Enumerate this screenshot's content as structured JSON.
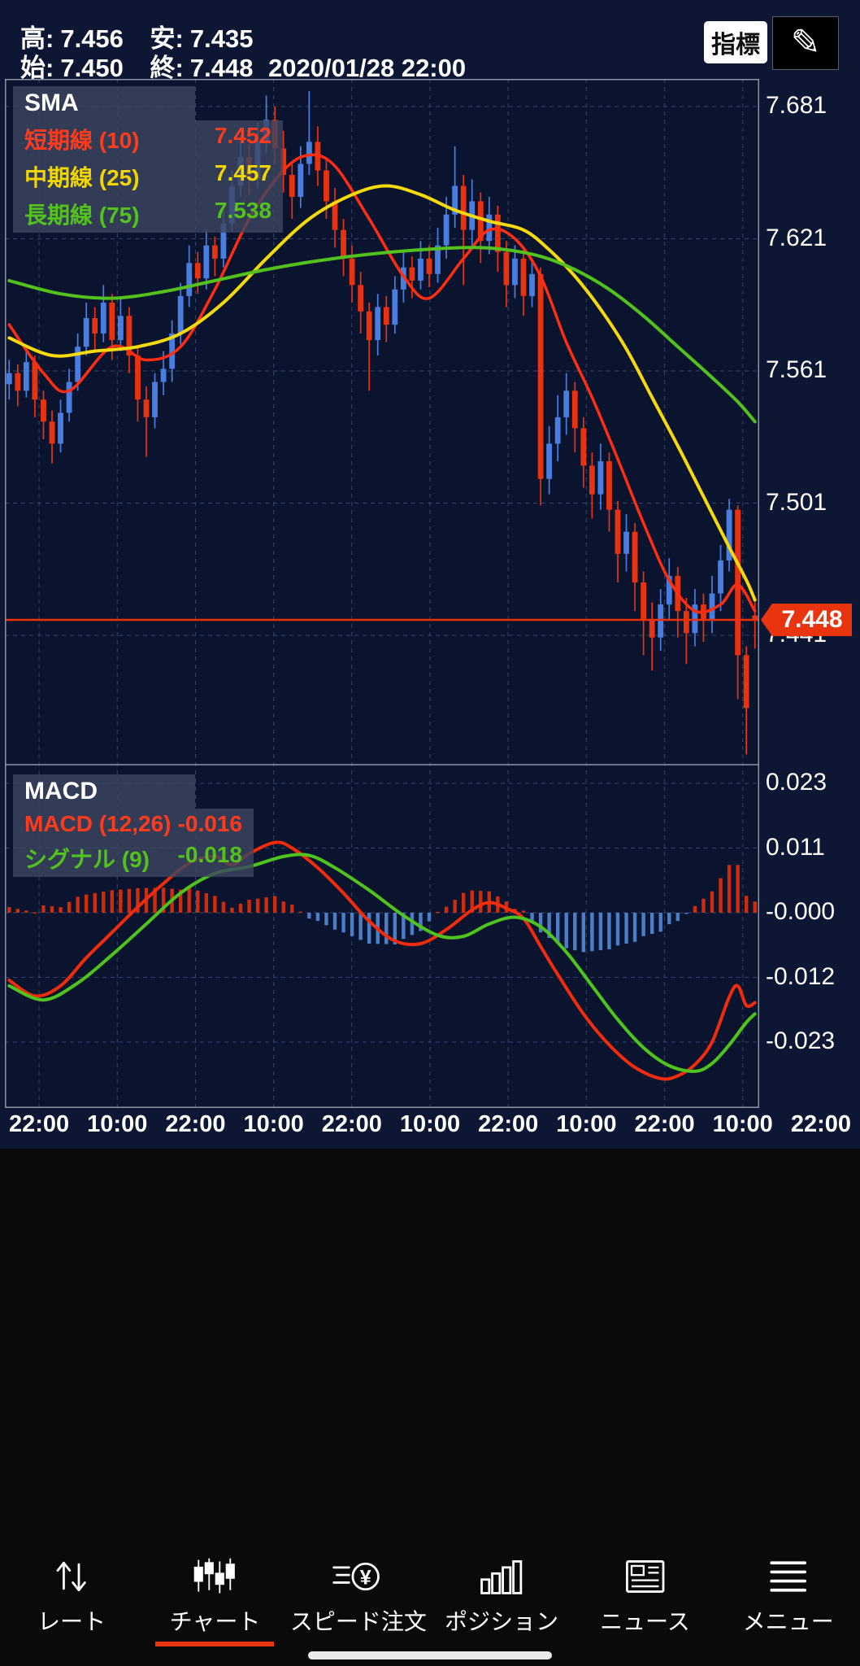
{
  "header": {
    "high_label": "高:",
    "high": "7.456",
    "low_label": "安:",
    "low": "7.435",
    "open_label": "始:",
    "open": "7.450",
    "close_label": "終:",
    "close": "7.448",
    "datetime": "2020/01/28 22:00",
    "indicator_button": "指標"
  },
  "icons": {
    "pencil": "✎"
  },
  "colors": {
    "page_bg": "#0d1734",
    "chart_bg": "#0a142e",
    "grid": "#35456b",
    "border": "#8b94a8",
    "candle_up": "#4a7de0",
    "candle_down": "#e93210",
    "price_line": "#ed3007",
    "accent": "#e8350f"
  },
  "x_labels": [
    "22:00",
    "10:00",
    "22:00",
    "10:00",
    "22:00",
    "10:00",
    "22:00",
    "10:00",
    "22:00",
    "10:00",
    "22:00"
  ],
  "chart_data": [
    {
      "type": "candlestick",
      "title": "SMA",
      "legend": {
        "title": "SMA",
        "position": "top-left",
        "series": [
          {
            "label": "短期線 (10)",
            "value": "7.452",
            "color": "#ff3b1e"
          },
          {
            "label": "中期線 (25)",
            "value": "7.457",
            "color": "#f0d500"
          },
          {
            "label": "長期線 (75)",
            "value": "7.538",
            "color": "#53c21d"
          }
        ]
      },
      "grid": "dashed",
      "y_ticks": [
        "7.681",
        "7.621",
        "7.561",
        "7.501",
        "7.441"
      ],
      "current_price": 7.448,
      "current_price_label": "7.448",
      "candles": [
        [
          7.555,
          7.566,
          7.548,
          7.56
        ],
        [
          7.56,
          7.564,
          7.545,
          7.552
        ],
        [
          7.552,
          7.571,
          7.549,
          7.565
        ],
        [
          7.565,
          7.568,
          7.54,
          7.548
        ],
        [
          7.548,
          7.552,
          7.53,
          7.538
        ],
        [
          7.538,
          7.543,
          7.519,
          7.528
        ],
        [
          7.528,
          7.548,
          7.524,
          7.542
        ],
        [
          7.542,
          7.562,
          7.538,
          7.556
        ],
        [
          7.556,
          7.578,
          7.552,
          7.572
        ],
        [
          7.572,
          7.592,
          7.568,
          7.585
        ],
        [
          7.585,
          7.59,
          7.57,
          7.578
        ],
        [
          7.578,
          7.6,
          7.574,
          7.592
        ],
        [
          7.592,
          7.596,
          7.566,
          7.575
        ],
        [
          7.575,
          7.594,
          7.57,
          7.586
        ],
        [
          7.586,
          7.59,
          7.56,
          7.568
        ],
        [
          7.568,
          7.572,
          7.538,
          7.548
        ],
        [
          7.548,
          7.554,
          7.522,
          7.54
        ],
        [
          7.54,
          7.56,
          7.535,
          7.556
        ],
        [
          7.556,
          7.57,
          7.55,
          7.562
        ],
        [
          7.562,
          7.584,
          7.556,
          7.578
        ],
        [
          7.578,
          7.601,
          7.573,
          7.595
        ],
        [
          7.595,
          7.618,
          7.59,
          7.61
        ],
        [
          7.61,
          7.615,
          7.596,
          7.603
        ],
        [
          7.603,
          7.625,
          7.598,
          7.618
        ],
        [
          7.618,
          7.622,
          7.604,
          7.612
        ],
        [
          7.612,
          7.634,
          7.608,
          7.628
        ],
        [
          7.628,
          7.652,
          7.624,
          7.645
        ],
        [
          7.645,
          7.668,
          7.64,
          7.658
        ],
        [
          7.658,
          7.664,
          7.641,
          7.648
        ],
        [
          7.648,
          7.674,
          7.644,
          7.665
        ],
        [
          7.665,
          7.686,
          7.66,
          7.675
        ],
        [
          7.675,
          7.681,
          7.655,
          7.662
        ],
        [
          7.662,
          7.67,
          7.642,
          7.65
        ],
        [
          7.65,
          7.656,
          7.63,
          7.64
        ],
        [
          7.64,
          7.663,
          7.635,
          7.655
        ],
        [
          7.655,
          7.688,
          7.65,
          7.665
        ],
        [
          7.665,
          7.672,
          7.645,
          7.652
        ],
        [
          7.652,
          7.658,
          7.63,
          7.638
        ],
        [
          7.638,
          7.644,
          7.617,
          7.625
        ],
        [
          7.625,
          7.63,
          7.604,
          7.612
        ],
        [
          7.612,
          7.618,
          7.592,
          7.6
        ],
        [
          7.6,
          7.606,
          7.578,
          7.588
        ],
        [
          7.588,
          7.592,
          7.552,
          7.575
        ],
        [
          7.575,
          7.596,
          7.568,
          7.59
        ],
        [
          7.59,
          7.595,
          7.574,
          7.582
        ],
        [
          7.582,
          7.604,
          7.578,
          7.598
        ],
        [
          7.598,
          7.615,
          7.592,
          7.608
        ],
        [
          7.608,
          7.613,
          7.594,
          7.602
        ],
        [
          7.602,
          7.62,
          7.598,
          7.612
        ],
        [
          7.612,
          7.618,
          7.599,
          7.605
        ],
        [
          7.605,
          7.626,
          7.601,
          7.618
        ],
        [
          7.618,
          7.64,
          7.612,
          7.632
        ],
        [
          7.632,
          7.663,
          7.626,
          7.645
        ],
        [
          7.645,
          7.65,
          7.6,
          7.625
        ],
        [
          7.625,
          7.648,
          7.618,
          7.638
        ],
        [
          7.638,
          7.642,
          7.61,
          7.62
        ],
        [
          7.62,
          7.64,
          7.614,
          7.632
        ],
        [
          7.632,
          7.636,
          7.606,
          7.615
        ],
        [
          7.615,
          7.62,
          7.59,
          7.6
        ],
        [
          7.6,
          7.618,
          7.594,
          7.612
        ],
        [
          7.612,
          7.616,
          7.586,
          7.595
        ],
        [
          7.595,
          7.612,
          7.59,
          7.605
        ],
        [
          7.605,
          7.608,
          7.5,
          7.512
        ],
        [
          7.512,
          7.536,
          7.505,
          7.528
        ],
        [
          7.528,
          7.55,
          7.52,
          7.54
        ],
        [
          7.54,
          7.56,
          7.532,
          7.552
        ],
        [
          7.552,
          7.556,
          7.524,
          7.535
        ],
        [
          7.535,
          7.54,
          7.508,
          7.518
        ],
        [
          7.518,
          7.524,
          7.494,
          7.505
        ],
        [
          7.505,
          7.528,
          7.498,
          7.52
        ],
        [
          7.52,
          7.524,
          7.488,
          7.498
        ],
        [
          7.498,
          7.502,
          7.465,
          7.478
        ],
        [
          7.478,
          7.496,
          7.47,
          7.488
        ],
        [
          7.488,
          7.492,
          7.452,
          7.465
        ],
        [
          7.465,
          7.47,
          7.432,
          7.448
        ],
        [
          7.448,
          7.456,
          7.425,
          7.44
        ],
        [
          7.44,
          7.462,
          7.434,
          7.455
        ],
        [
          7.455,
          7.476,
          7.448,
          7.468
        ],
        [
          7.468,
          7.472,
          7.44,
          7.452
        ],
        [
          7.452,
          7.458,
          7.428,
          7.442
        ],
        [
          7.442,
          7.462,
          7.436,
          7.455
        ],
        [
          7.455,
          7.46,
          7.438,
          7.448
        ],
        [
          7.448,
          7.468,
          7.442,
          7.46
        ],
        [
          7.46,
          7.482,
          7.452,
          7.475
        ],
        [
          7.475,
          7.503,
          7.47,
          7.498
        ],
        [
          7.498,
          7.5,
          7.412,
          7.432
        ],
        [
          7.432,
          7.436,
          7.387,
          7.408
        ],
        [
          7.45,
          7.456,
          7.435,
          7.448
        ]
      ],
      "overlays": [
        {
          "name": "sma-10-line",
          "color": "#ff2d12",
          "width": 3.5,
          "points": [
            [
              0,
              7.582
            ],
            [
              4,
              7.56
            ],
            [
              7,
              7.552
            ],
            [
              12,
              7.572
            ],
            [
              16,
              7.566
            ],
            [
              20,
              7.572
            ],
            [
              24,
              7.598
            ],
            [
              28,
              7.63
            ],
            [
              32,
              7.652
            ],
            [
              35,
              7.659
            ],
            [
              38,
              7.654
            ],
            [
              42,
              7.63
            ],
            [
              46,
              7.604
            ],
            [
              49,
              7.594
            ],
            [
              53,
              7.612
            ],
            [
              56,
              7.625
            ],
            [
              59,
              7.621
            ],
            [
              62,
              7.604
            ],
            [
              65,
              7.574
            ],
            [
              68,
              7.549
            ],
            [
              71,
              7.521
            ],
            [
              74,
              7.492
            ],
            [
              77,
              7.466
            ],
            [
              80,
              7.452
            ],
            [
              83,
              7.455
            ],
            [
              85,
              7.464
            ],
            [
              87,
              7.452
            ]
          ]
        },
        {
          "name": "sma-25-line",
          "color": "#f5d90a",
          "width": 4,
          "points": [
            [
              0,
              7.576
            ],
            [
              5,
              7.568
            ],
            [
              10,
              7.57
            ],
            [
              15,
              7.572
            ],
            [
              20,
              7.578
            ],
            [
              25,
              7.592
            ],
            [
              30,
              7.612
            ],
            [
              35,
              7.63
            ],
            [
              40,
              7.641
            ],
            [
              44,
              7.645
            ],
            [
              48,
              7.641
            ],
            [
              52,
              7.634
            ],
            [
              56,
              7.629
            ],
            [
              60,
              7.625
            ],
            [
              63,
              7.616
            ],
            [
              66,
              7.604
            ],
            [
              69,
              7.589
            ],
            [
              72,
              7.571
            ],
            [
              75,
              7.549
            ],
            [
              78,
              7.527
            ],
            [
              81,
              7.504
            ],
            [
              84,
              7.481
            ],
            [
              86,
              7.466
            ],
            [
              87,
              7.457
            ]
          ]
        },
        {
          "name": "sma-75-line",
          "color": "#53c21d",
          "width": 4,
          "points": [
            [
              0,
              7.602
            ],
            [
              6,
              7.596
            ],
            [
              12,
              7.594
            ],
            [
              18,
              7.597
            ],
            [
              24,
              7.602
            ],
            [
              30,
              7.607
            ],
            [
              36,
              7.611
            ],
            [
              42,
              7.614
            ],
            [
              48,
              7.616
            ],
            [
              54,
              7.617
            ],
            [
              58,
              7.616
            ],
            [
              62,
              7.613
            ],
            [
              66,
              7.607
            ],
            [
              70,
              7.598
            ],
            [
              74,
              7.586
            ],
            [
              78,
              7.572
            ],
            [
              82,
              7.558
            ],
            [
              85,
              7.547
            ],
            [
              87,
              7.538
            ]
          ]
        }
      ]
    },
    {
      "type": "macd",
      "title": "MACD",
      "legend": {
        "title": "MACD",
        "position": "top-left",
        "series": [
          {
            "label": "MACD (12,26)",
            "value": "-0.016",
            "color": "#ff3b1e"
          },
          {
            "label": "シグナル (9)",
            "value": "-0.018",
            "color": "#53c21d"
          }
        ]
      },
      "grid": "dashed",
      "y_ticks": [
        "0.023",
        "0.011",
        "-0.000",
        "-0.012",
        "-0.023"
      ],
      "histogram_colors": {
        "pos": "#cf2c0c",
        "neg": "#4c7dc9"
      },
      "lines": [
        {
          "name": "macd-line",
          "color": "#f02c0c",
          "points": [
            [
              0,
              -0.012
            ],
            [
              3,
              -0.0148
            ],
            [
              6,
              -0.013
            ],
            [
              9,
              -0.008
            ],
            [
              12,
              -0.0035
            ],
            [
              15,
              0.001
            ],
            [
              18,
              0.0052
            ],
            [
              21,
              0.0088
            ],
            [
              24,
              0.01
            ],
            [
              26,
              0.0085
            ],
            [
              28,
              0.0105
            ],
            [
              31,
              0.0125
            ],
            [
              33,
              0.0115
            ],
            [
              36,
              0.008
            ],
            [
              39,
              0.0035
            ],
            [
              42,
              -0.0015
            ],
            [
              45,
              -0.005
            ],
            [
              48,
              -0.0055
            ],
            [
              51,
              -0.003
            ],
            [
              54,
              0.0005
            ],
            [
              56,
              0.0018
            ],
            [
              58,
              0.0008
            ],
            [
              60,
              -0.001
            ],
            [
              62,
              -0.006
            ],
            [
              64,
              -0.011
            ],
            [
              67,
              -0.018
            ],
            [
              70,
              -0.0235
            ],
            [
              73,
              -0.0275
            ],
            [
              76,
              -0.0295
            ],
            [
              78,
              -0.029
            ],
            [
              80,
              -0.027
            ],
            [
              82,
              -0.023
            ],
            [
              84,
              -0.015
            ],
            [
              85,
              -0.013
            ],
            [
              86,
              -0.0165
            ],
            [
              87,
              -0.016
            ]
          ]
        },
        {
          "name": "signal-line",
          "color": "#4fc41f",
          "points": [
            [
              0,
              -0.013
            ],
            [
              4,
              -0.0155
            ],
            [
              8,
              -0.0125
            ],
            [
              12,
              -0.0075
            ],
            [
              16,
              -0.002
            ],
            [
              20,
              0.0035
            ],
            [
              24,
              0.007
            ],
            [
              28,
              0.0082
            ],
            [
              32,
              0.01
            ],
            [
              35,
              0.0102
            ],
            [
              38,
              0.008
            ],
            [
              42,
              0.004
            ],
            [
              46,
              -0.0005
            ],
            [
              50,
              -0.004
            ],
            [
              53,
              -0.0042
            ],
            [
              56,
              -0.002
            ],
            [
              59,
              -0.0008
            ],
            [
              62,
              -0.0025
            ],
            [
              65,
              -0.007
            ],
            [
              68,
              -0.013
            ],
            [
              71,
              -0.019
            ],
            [
              74,
              -0.024
            ],
            [
              77,
              -0.0272
            ],
            [
              80,
              -0.0282
            ],
            [
              82,
              -0.0268
            ],
            [
              84,
              -0.0235
            ],
            [
              86,
              -0.0195
            ],
            [
              87,
              -0.018
            ]
          ]
        }
      ]
    }
  ],
  "nav": {
    "active_index": 1,
    "items": [
      {
        "label": "レート"
      },
      {
        "label": "チャート"
      },
      {
        "label": "スピード注文"
      },
      {
        "label": "ポジション"
      },
      {
        "label": "ニュース"
      },
      {
        "label": "メニュー"
      }
    ]
  }
}
